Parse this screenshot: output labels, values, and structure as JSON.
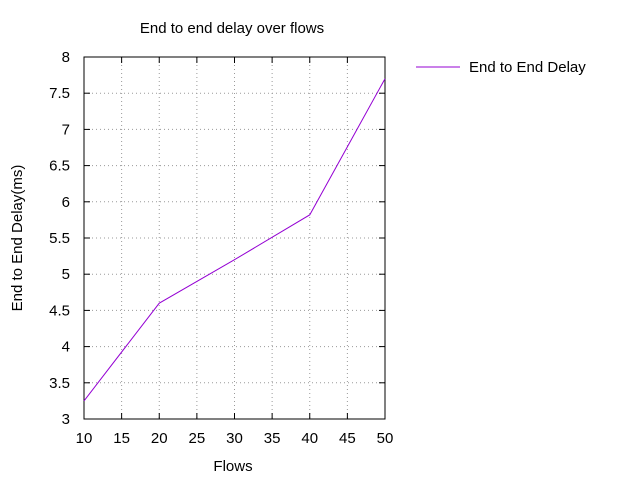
{
  "chart_data": {
    "type": "line",
    "title": "End to end delay over flows",
    "xlabel": "Flows",
    "ylabel": "End to End Delay(ms)",
    "xlim": [
      10,
      50
    ],
    "ylim": [
      3,
      8
    ],
    "x_ticks": [
      "10",
      "15",
      "20",
      "25",
      "30",
      "35",
      "40",
      "45",
      "50"
    ],
    "y_ticks": [
      "3",
      "3.5",
      "4",
      "4.5",
      "5",
      "5.5",
      "6",
      "6.5",
      "7",
      "7.5",
      "8"
    ],
    "grid": true,
    "legend_position": "top-right, outside plot",
    "series": [
      {
        "name": "End to End Delay",
        "color": "#9400d3",
        "x": [
          10,
          20,
          30,
          40,
          50
        ],
        "y": [
          3.25,
          4.6,
          5.2,
          5.82,
          7.7
        ]
      }
    ]
  }
}
